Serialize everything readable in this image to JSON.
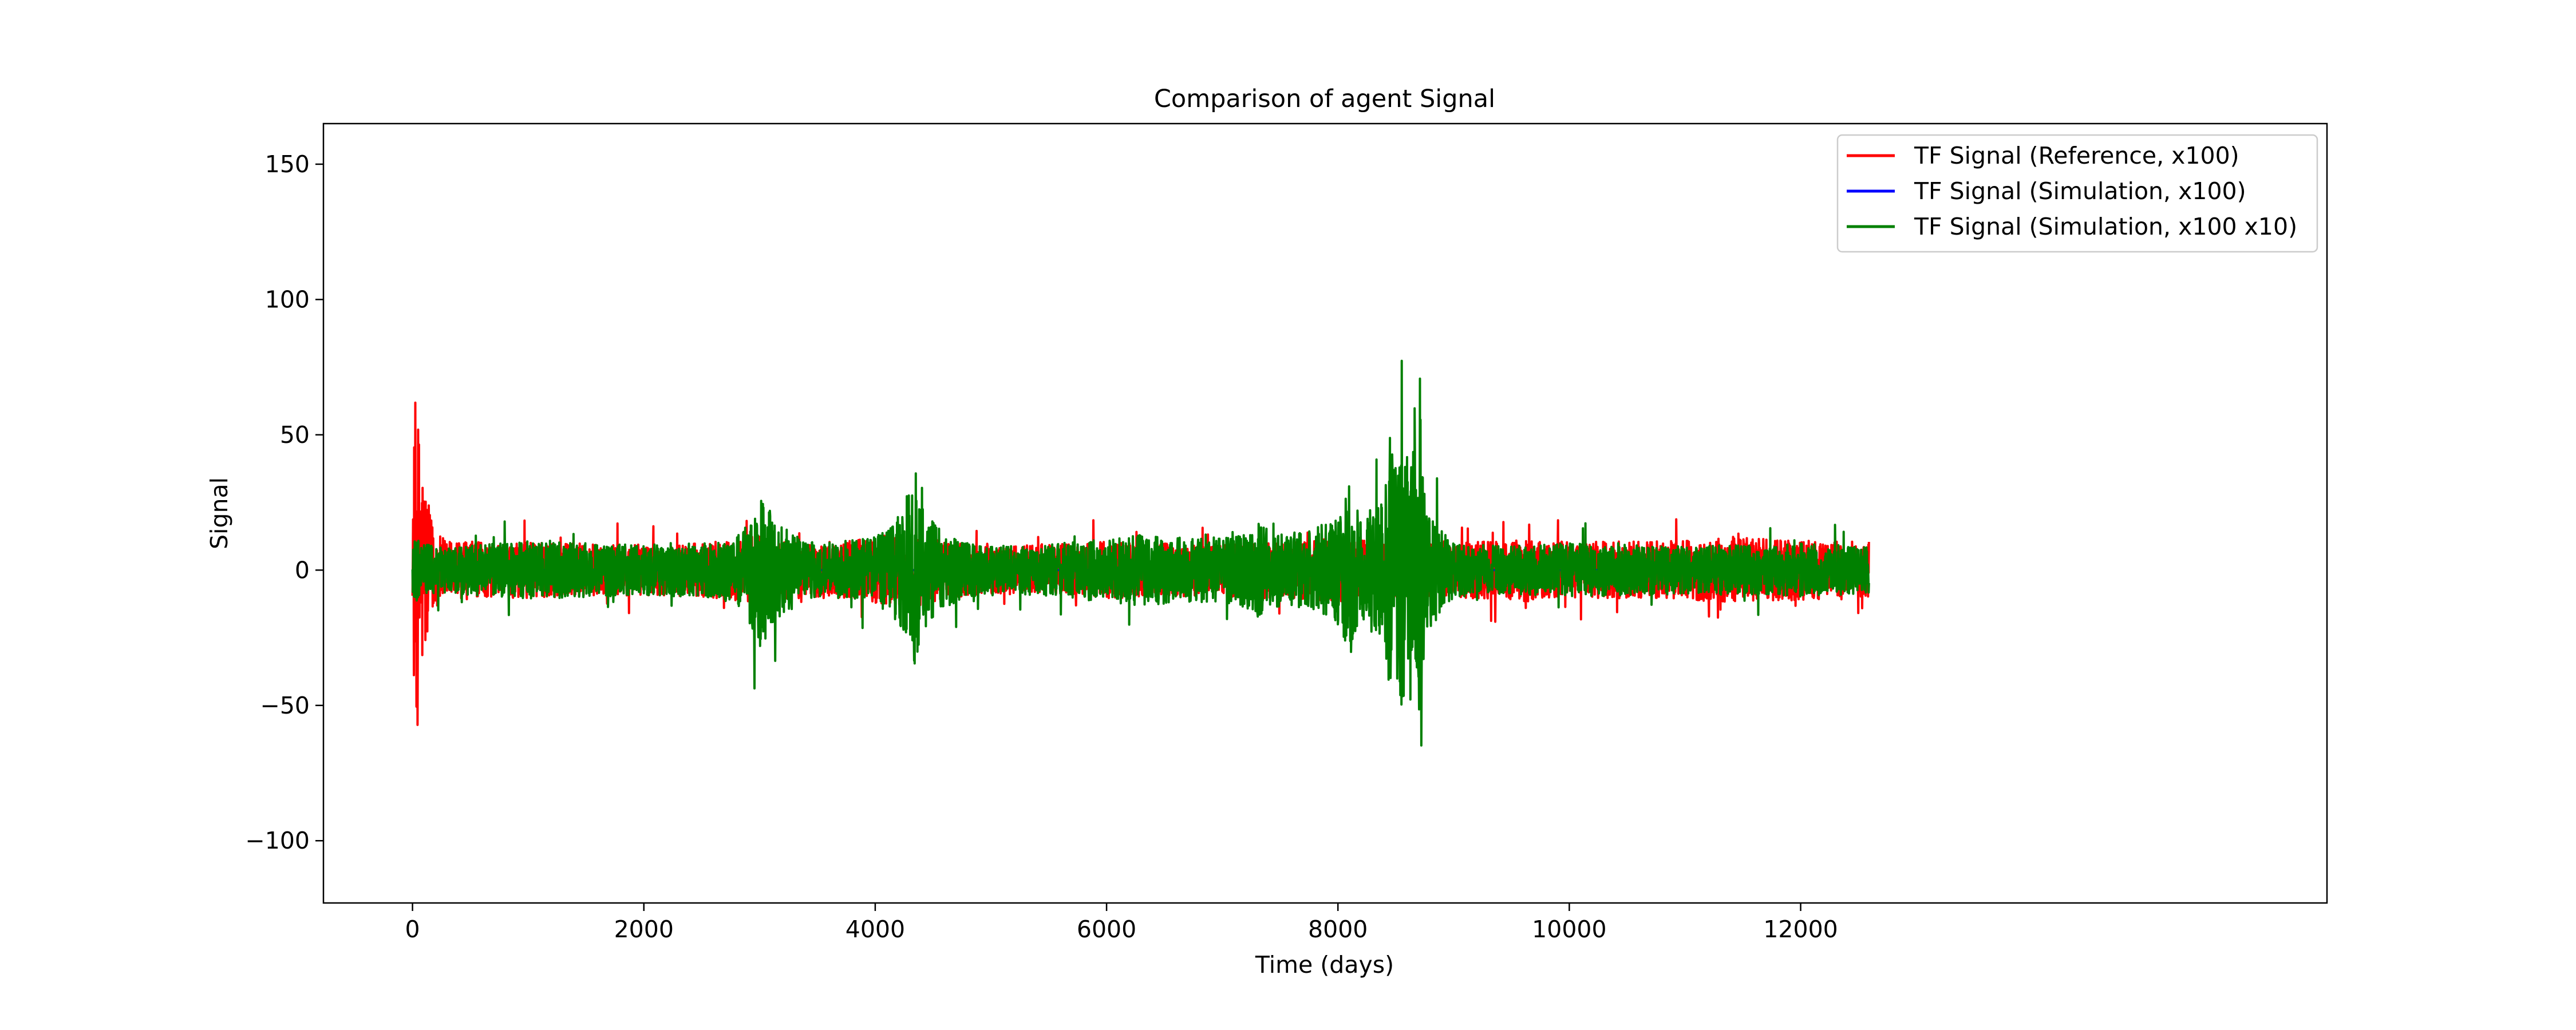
{
  "chart_data": {
    "type": "line",
    "title": "Comparison of agent Signal",
    "xlabel": "Time (days)",
    "ylabel": "Signal",
    "xlim": [
      -770,
      16550
    ],
    "ylim": [
      -123,
      165
    ],
    "x_ticks": [
      0,
      2000,
      4000,
      6000,
      8000,
      10000,
      12000
    ],
    "x_tick_labels": [
      "0",
      "2000",
      "4000",
      "6000",
      "8000",
      "10000",
      "12000"
    ],
    "y_ticks": [
      -100,
      -50,
      0,
      50,
      100,
      150
    ],
    "y_tick_labels": [
      "−100",
      "−50",
      "0",
      "50",
      "100",
      "150"
    ],
    "grid": false,
    "legend_position": "upper right",
    "series": [
      {
        "name": "TF Signal (Reference, x100)",
        "color": "#ff0000",
        "x": [
          0,
          20,
          40,
          60,
          80,
          100,
          120,
          150,
          200,
          260,
          400,
          700,
          1000,
          1500,
          2000,
          2500,
          2900,
          3000,
          3300,
          3700,
          4000,
          4200,
          4300,
          4400,
          4600,
          5000,
          5500,
          6000,
          6500,
          7000,
          7200,
          7500,
          7800,
          8000,
          8200,
          8400,
          8500,
          8550,
          8600,
          8650,
          8700,
          8740,
          9000,
          9500,
          10000,
          10500,
          11000,
          11500,
          12000,
          12300,
          12590
        ],
        "amplitude": [
          18,
          115,
          110,
          95,
          77,
          68,
          55,
          38,
          25,
          22,
          20,
          18,
          19,
          18,
          17,
          18,
          21,
          25,
          19,
          19,
          22,
          25,
          27,
          24,
          19,
          16,
          17,
          19,
          18,
          17,
          20,
          18,
          20,
          22,
          20,
          22,
          24,
          24,
          22,
          24,
          24,
          20,
          19,
          20,
          19,
          19,
          20,
          22,
          20,
          20,
          19
        ]
      },
      {
        "name": "TF Signal (Simulation, x100)",
        "color": "#0000ff",
        "x": [
          0,
          12590
        ],
        "amplitude": [
          0,
          0
        ]
      },
      {
        "name": "TF Signal (Simulation, x100 x10)",
        "color": "#008000",
        "x": [
          0,
          20,
          40,
          60,
          80,
          100,
          120,
          150,
          200,
          260,
          400,
          700,
          1000,
          1500,
          2000,
          2500,
          2800,
          2900,
          2950,
          3000,
          3100,
          3200,
          3300,
          3500,
          3800,
          4000,
          4150,
          4250,
          4300,
          4350,
          4400,
          4500,
          4600,
          4800,
          5200,
          5600,
          6000,
          6300,
          6600,
          7000,
          7200,
          7300,
          7500,
          7800,
          7900,
          8000,
          8100,
          8200,
          8300,
          8400,
          8450,
          8500,
          8550,
          8600,
          8650,
          8700,
          8720,
          8740,
          8760,
          9000,
          9500,
          10000,
          10500,
          11000,
          11500,
          12000,
          12300,
          12590
        ],
        "amplitude": [
          15,
          20,
          22,
          20,
          18,
          18,
          18,
          17,
          16,
          15,
          16,
          18,
          20,
          18,
          17,
          18,
          22,
          35,
          45,
          52,
          42,
          30,
          24,
          18,
          20,
          24,
          30,
          45,
          57,
          67,
          45,
          33,
          25,
          18,
          16,
          18,
          22,
          24,
          22,
          22,
          25,
          32,
          24,
          28,
          32,
          38,
          58,
          35,
          42,
          45,
          90,
          70,
          95,
          92,
          85,
          90,
          152,
          60,
          45,
          18,
          16,
          18,
          17,
          16,
          17,
          18,
          17,
          16
        ]
      }
    ]
  }
}
